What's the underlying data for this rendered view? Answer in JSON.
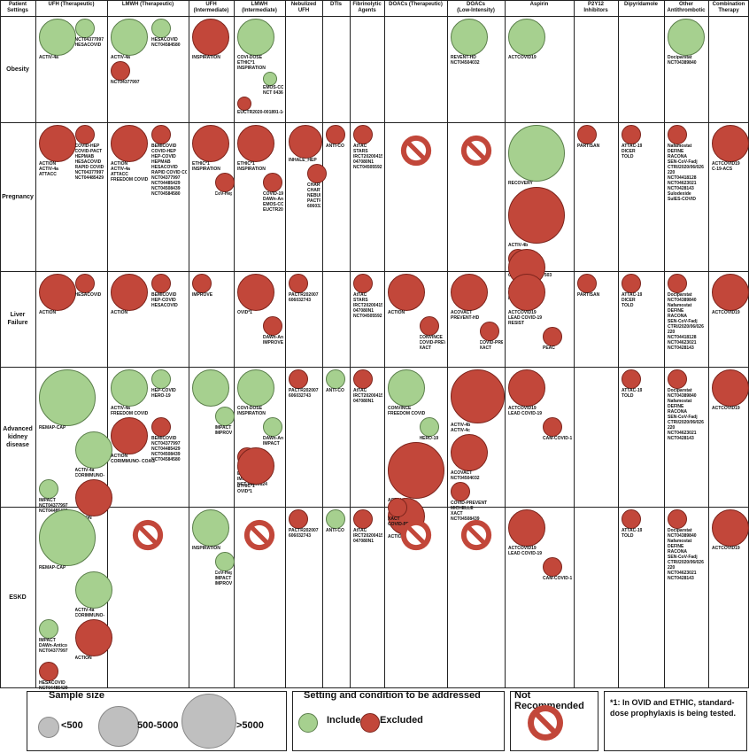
{
  "colors": {
    "included": "#a6d08f",
    "excluded": "#c2473a",
    "grid": "#222222"
  },
  "headers": [
    "Patient\nSettings",
    "UFH (Therapeutic)",
    "LMWH (Therapeutic)",
    "UFH\n(Intermediate)",
    "LMWH\n(Intermediate)",
    "Nebulized\nUFH",
    "DTIs",
    "Fibrinolytic\nAgents",
    "DOACs (Therapeutic)",
    "DOACs\n(Low-Intensity)",
    "Aspirin",
    "P2Y12\nInhibitors",
    "Dipyridamole",
    "Other\nAntithrombotic",
    "Combination\nTherapy"
  ],
  "rows": [
    "Obesity",
    "Pregnancy",
    "Liver\nFailure",
    "Advanced\nkidney\ndisease",
    "ESKD"
  ],
  "items": [
    {
      "row": 0,
      "col": 1,
      "status": "included",
      "size": "large",
      "label": "ACTIV-4a"
    },
    {
      "row": 0,
      "col": 1,
      "status": "included",
      "size": "small",
      "label": "NCT04377997\nHESACOVID"
    },
    {
      "row": 0,
      "col": 2,
      "status": "included",
      "size": "large",
      "label": "ACTIV-4a"
    },
    {
      "row": 0,
      "col": 2,
      "status": "included",
      "size": "small",
      "label": "HESACOVID\nNCT04584580"
    },
    {
      "row": 0,
      "col": 2,
      "status": "excluded",
      "size": "small",
      "label": "NCT04377997"
    },
    {
      "row": 0,
      "col": 3,
      "status": "excluded",
      "size": "large",
      "label": "INSPIRATION"
    },
    {
      "row": 0,
      "col": 4,
      "status": "included",
      "size": "large",
      "label": "COVI-DOSE\nETHIC*1\nINSPIRATION"
    },
    {
      "row": 0,
      "col": 4,
      "status": "included",
      "size": "tiny",
      "label": "EMOS-COVID\nNCT 04360824"
    },
    {
      "row": 0,
      "col": 4,
      "status": "excluded",
      "size": "tiny",
      "label": "EUCTR2020-001891-14"
    },
    {
      "row": 0,
      "col": 9,
      "status": "included",
      "size": "large",
      "label": "REVENT-HD\nNCT04504032"
    },
    {
      "row": 0,
      "col": 10,
      "status": "included",
      "size": "large",
      "label": "ACTCOVID19"
    },
    {
      "row": 0,
      "col": 13,
      "status": "included",
      "size": "large",
      "label": "Dociparstat\nNCT04389840"
    },
    {
      "row": 1,
      "col": 1,
      "status": "excluded",
      "size": "large",
      "label": "ACTION\nACTIV-4a\nATTACC"
    },
    {
      "row": 1,
      "col": 1,
      "status": "excluded",
      "size": "small",
      "label": "COVID-HEP\nCOVID-PACT\nHEPMAB\nHESACOVID\nRAPID COVID COAG\nNCT04377997\nNCT04485429"
    },
    {
      "row": 1,
      "col": 2,
      "status": "excluded",
      "size": "large",
      "label": "ACTION\nACTIV-4a\nATTACC\nFREEDOM COVID"
    },
    {
      "row": 1,
      "col": 2,
      "status": "excluded",
      "size": "small",
      "label": "BEMICOVID\nCOVID-HEP\nHEP-COVID\nHEPMAB\nHESACOVID\nRAPID COVID COAG\nNCT04377997\nNCT04485429\nNCT04508439\nNCT04584580"
    },
    {
      "row": 1,
      "col": 3,
      "status": "excluded",
      "size": "large",
      "label": "ETHIC*1\nINSPIRATION"
    },
    {
      "row": 1,
      "col": 3,
      "status": "excluded",
      "size": "small",
      "label": "CoV-Hep"
    },
    {
      "row": 1,
      "col": 4,
      "status": "excluded",
      "size": "large",
      "label": "ETHIC*1\nINSPIRATION"
    },
    {
      "row": 1,
      "col": 4,
      "status": "excluded",
      "size": "small",
      "label": "COVID-19 HD\nDAWn-Antico\nEMOS-COVID\nEUCTR2020-001891-14"
    },
    {
      "row": 1,
      "col": 5,
      "status": "excluded",
      "size": "large",
      "label": "INHALE_HEP"
    },
    {
      "row": 1,
      "col": 5,
      "status": "excluded",
      "size": "small",
      "label": "CHARTER-Irl\nCHARTER-MT\nNEBUHEPA\nPACTR202007\n606032743"
    },
    {
      "row": 1,
      "col": 6,
      "status": "excluded",
      "size": "small",
      "label": "ANTI-CO"
    },
    {
      "row": 1,
      "col": 7,
      "status": "excluded",
      "size": "small",
      "label": "AtTAC\nSTARS\nIRCT20200415\n047080N1\nNCT04505592"
    },
    {
      "row": 1,
      "col": 8,
      "status": "notrec",
      "size": "",
      "label": ""
    },
    {
      "row": 1,
      "col": 9,
      "status": "notrec",
      "size": "",
      "label": ""
    },
    {
      "row": 1,
      "col": 10,
      "status": "included",
      "size": "xlarge",
      "label": "RECOVERY"
    },
    {
      "row": 1,
      "col": 10,
      "status": "excluded",
      "size": "xlarge",
      "label": "ACTIV-4b"
    },
    {
      "row": 1,
      "col": 10,
      "status": "excluded",
      "size": "small",
      "label": "PEAC\nCTRI/2020/08/027503"
    },
    {
      "row": 1,
      "col": 10,
      "status": "excluded",
      "size": "large",
      "label": "ACTCOVID19\nLEAD COVID-19\nRESIST"
    },
    {
      "row": 1,
      "col": 11,
      "status": "excluded",
      "size": "small",
      "label": "PARTISAN"
    },
    {
      "row": 1,
      "col": 12,
      "status": "excluded",
      "size": "small",
      "label": "ATTAC-19\nDICER\nTOLD"
    },
    {
      "row": 1,
      "col": 13,
      "status": "excluded",
      "size": "small",
      "label": "Nafamostat\nDEFINE\nRACONA\nSEN-CoV-Fadj\nCTRI/2020/06/026\n220\nNCT04418128\nNCT04623021\nNCT0428143\nSulodexide\nSulES-COVID"
    },
    {
      "row": 1,
      "col": 14,
      "status": "excluded",
      "size": "large",
      "label": "ACTCOVID19\nC-19-ACS"
    },
    {
      "row": 2,
      "col": 1,
      "status": "excluded",
      "size": "large",
      "label": "ACTION"
    },
    {
      "row": 2,
      "col": 1,
      "status": "excluded",
      "size": "small",
      "label": "HESACOVID"
    },
    {
      "row": 2,
      "col": 2,
      "status": "excluded",
      "size": "large",
      "label": "ACTION"
    },
    {
      "row": 2,
      "col": 2,
      "status": "excluded",
      "size": "small",
      "label": "BEMICOVID\nHEP-COVID\nHESACOVID"
    },
    {
      "row": 2,
      "col": 3,
      "status": "excluded",
      "size": "small",
      "label": "IMPROVE"
    },
    {
      "row": 2,
      "col": 4,
      "status": "excluded",
      "size": "large",
      "label": "OVID*1"
    },
    {
      "row": 2,
      "col": 4,
      "status": "excluded",
      "size": "small",
      "label": "DAWn-Antico\nIMPROVE"
    },
    {
      "row": 2,
      "col": 5,
      "status": "excluded",
      "size": "small",
      "label": "PACTR202007\n606032743"
    },
    {
      "row": 2,
      "col": 7,
      "status": "excluded",
      "size": "small",
      "label": "AtTAC\nSTARS\nIRCT20200415\n047080N1\nNCT04505592"
    },
    {
      "row": 2,
      "col": 8,
      "status": "excluded",
      "size": "large",
      "label": "ACTION"
    },
    {
      "row": 2,
      "col": 8,
      "status": "excluded",
      "size": "small",
      "label": "CONVINCE\nCOVID-PREVENT\nXACT"
    },
    {
      "row": 2,
      "col": 9,
      "status": "excluded",
      "size": "large",
      "label": "ACOVACT\nPREVENT-HD"
    },
    {
      "row": 2,
      "col": 9,
      "status": "excluded",
      "size": "small",
      "label": "COVID-PREVENT\nXACT"
    },
    {
      "row": 2,
      "col": 10,
      "status": "excluded",
      "size": "large",
      "label": "ACTCOVID19\nLEAD COVID-19\nRESIST"
    },
    {
      "row": 2,
      "col": 10,
      "status": "excluded",
      "size": "small",
      "label": "PEAC"
    },
    {
      "row": 2,
      "col": 11,
      "status": "excluded",
      "size": "small",
      "label": "PARTISAN"
    },
    {
      "row": 2,
      "col": 12,
      "status": "excluded",
      "size": "small",
      "label": "ATTAC-19\nDICER\nTOLD"
    },
    {
      "row": 2,
      "col": 13,
      "status": "excluded",
      "size": "small",
      "label": "Dociparstat\nNCT04389840\nNafamostat\nDEFINE\nRACONA\nSEN-CoV-Fadj\nCTRI/2020/06/026\n220\nNCT04418128\nNCT04623021\nNCT0428143"
    },
    {
      "row": 2,
      "col": 14,
      "status": "excluded",
      "size": "large",
      "label": "ACTCOVID19"
    },
    {
      "row": 3,
      "col": 1,
      "status": "included",
      "size": "xlarge",
      "label": "REMAP-CAP"
    },
    {
      "row": 3,
      "col": 1,
      "status": "included",
      "size": "large",
      "label": "ACTIV-4a\nCORIMMUNO- COAG"
    },
    {
      "row": 3,
      "col": 1,
      "status": "included",
      "size": "small",
      "label": "IMPACT\nNCT04377997\nNCT04485429"
    },
    {
      "row": 3,
      "col": 1,
      "status": "excluded",
      "size": "large",
      "label": "ACTION"
    },
    {
      "row": 3,
      "col": 2,
      "status": "included",
      "size": "large",
      "label": "ACTIV-4a\nFREEDOM COVID"
    },
    {
      "row": 3,
      "col": 2,
      "status": "included",
      "size": "small",
      "label": "HEP-COVID\nHERO-19"
    },
    {
      "row": 3,
      "col": 2,
      "status": "excluded",
      "size": "large",
      "label": "ACTION\nCORIMMUNO- COAG"
    },
    {
      "row": 3,
      "col": 2,
      "status": "excluded",
      "size": "small",
      "label": "BEMICOVID\nNCT04377997\nNCT04485429\nNCT04508439\nNCT04584580"
    },
    {
      "row": 3,
      "col": 3,
      "status": "included",
      "size": "large",
      "label": ""
    },
    {
      "row": 3,
      "col": 3,
      "status": "included",
      "size": "small",
      "label": "IMPACT\nIMPROVE"
    },
    {
      "row": 3,
      "col": 4,
      "status": "included",
      "size": "large",
      "label": "COVI-DOSE\nINSPIRATION"
    },
    {
      "row": 3,
      "col": 4,
      "status": "included",
      "size": "small",
      "label": "DAWn-Antico\nIMPACT"
    },
    {
      "row": 3,
      "col": 4,
      "status": "excluded",
      "size": "small",
      "label": "COVID-19 HD\nEMOS-COVID\nIMPROVE\nNCT 04360824"
    },
    {
      "row": 3,
      "col": 4,
      "status": "excluded",
      "size": "large",
      "label": "ETHIC*1\nOVID*1"
    },
    {
      "row": 3,
      "col": 5,
      "status": "excluded",
      "size": "small",
      "label": "PACTR202007\n606032743"
    },
    {
      "row": 3,
      "col": 6,
      "status": "included",
      "size": "small",
      "label": "ANTI-CO"
    },
    {
      "row": 3,
      "col": 7,
      "status": "excluded",
      "size": "small",
      "label": "AtTAC\nIRCT20200415\n047080N1"
    },
    {
      "row": 3,
      "col": 8,
      "status": "included",
      "size": "large",
      "label": "CONVINCE\nFREEDOM COVID"
    },
    {
      "row": 3,
      "col": 8,
      "status": "included",
      "size": "small",
      "label": "HERO-19"
    },
    {
      "row": 3,
      "col": 8,
      "status": "excluded",
      "size": "xlarge",
      "label": "ACTIV-4b"
    },
    {
      "row": 3,
      "col": 8,
      "status": "excluded",
      "size": "large",
      "label": "ACTION"
    },
    {
      "row": 3,
      "col": 8,
      "status": "excluded",
      "size": "small",
      "label": "XACT\nCOVID-PREVENT"
    },
    {
      "row": 3,
      "col": 9,
      "status": "excluded",
      "size": "xlarge",
      "label": "ACTIV-4b\nACTIV-4c"
    },
    {
      "row": 3,
      "col": 9,
      "status": "excluded",
      "size": "large",
      "label": "ACOVACT\nNCT04504032"
    },
    {
      "row": 3,
      "col": 9,
      "status": "excluded",
      "size": "small",
      "label": "COVID-PREVENT\nMICHELLE\nXACT\nNCT04508439"
    },
    {
      "row": 3,
      "col": 10,
      "status": "excluded",
      "size": "large",
      "label": "ACTCOVID19\nLEAD COVID-19"
    },
    {
      "row": 3,
      "col": 10,
      "status": "excluded",
      "size": "small",
      "label": "CAM-COVID-19"
    },
    {
      "row": 3,
      "col": 12,
      "status": "excluded",
      "size": "small",
      "label": "ATTAC-19\nTOLD"
    },
    {
      "row": 3,
      "col": 13,
      "status": "excluded",
      "size": "small",
      "label": "Dociparstat\nNCT04389840\nNafamostat\nDEFINE\nRACONA\nSEN-CoV-Fadj\nCTRI/2020/06/026\n220\nNCT04623021\nNCT0428143"
    },
    {
      "row": 3,
      "col": 14,
      "status": "excluded",
      "size": "large",
      "label": "ACTCOVID19"
    },
    {
      "row": 4,
      "col": 1,
      "status": "included",
      "size": "xlarge",
      "label": "REMAP-CAP"
    },
    {
      "row": 4,
      "col": 1,
      "status": "included",
      "size": "large",
      "label": "ACTIV-4a\nCORIMMUNO- COAG"
    },
    {
      "row": 4,
      "col": 1,
      "status": "included",
      "size": "small",
      "label": "IMPACT\nDAWn-Antico\nNCT04377997"
    },
    {
      "row": 4,
      "col": 1,
      "status": "excluded",
      "size": "large",
      "label": "ACTION"
    },
    {
      "row": 4,
      "col": 1,
      "status": "excluded",
      "size": "small",
      "label": "HESACOVID\nNCT04485429"
    },
    {
      "row": 4,
      "col": 2,
      "status": "notrec",
      "size": "",
      "label": ""
    },
    {
      "row": 4,
      "col": 3,
      "status": "included",
      "size": "large",
      "label": "INSPIRATION"
    },
    {
      "row": 4,
      "col": 3,
      "status": "included",
      "size": "small",
      "label": "CoV-Hep\nIMPACT\nIMPROVE"
    },
    {
      "row": 4,
      "col": 4,
      "status": "notrec",
      "size": "",
      "label": ""
    },
    {
      "row": 4,
      "col": 5,
      "status": "excluded",
      "size": "small",
      "label": "PACTR202007\n606032743"
    },
    {
      "row": 4,
      "col": 6,
      "status": "included",
      "size": "small",
      "label": "ANTI-CO"
    },
    {
      "row": 4,
      "col": 7,
      "status": "excluded",
      "size": "small",
      "label": "AtTAC\nIRCT20200415\n047080N1"
    },
    {
      "row": 4,
      "col": 8,
      "status": "notrec",
      "size": "",
      "label": ""
    },
    {
      "row": 4,
      "col": 9,
      "status": "notrec",
      "size": "",
      "label": ""
    },
    {
      "row": 4,
      "col": 10,
      "status": "excluded",
      "size": "large",
      "label": "ACTCOVID19\nLEAD COVID-19"
    },
    {
      "row": 4,
      "col": 10,
      "status": "excluded",
      "size": "small",
      "label": "CAM-COVID-19"
    },
    {
      "row": 4,
      "col": 12,
      "status": "excluded",
      "size": "small",
      "label": "ATTAC-19\nTOLD"
    },
    {
      "row": 4,
      "col": 13,
      "status": "excluded",
      "size": "small",
      "label": "Dociparstat\nNCT04389840\nNafamostat\nDEFINE\nRACONA\nSEN-CoV-Fadj\nCTRI/2020/06/026\n220\nNCT04623021\nNCT0428143"
    },
    {
      "row": 4,
      "col": 14,
      "status": "excluded",
      "size": "large",
      "label": "ACTCOVID19"
    }
  ],
  "legend": {
    "sample_size": {
      "title": "Sample size",
      "small": "<500",
      "medium": "500-5000",
      "large": ">5000"
    },
    "setting": {
      "title": "Setting and condition to be addressed",
      "included": "Included",
      "excluded": "Excluded"
    },
    "not_recommended": {
      "title": "Not Recommended"
    },
    "note": "*1: In OVID and ETHIC, standard-dose prophylaxis is being tested."
  }
}
